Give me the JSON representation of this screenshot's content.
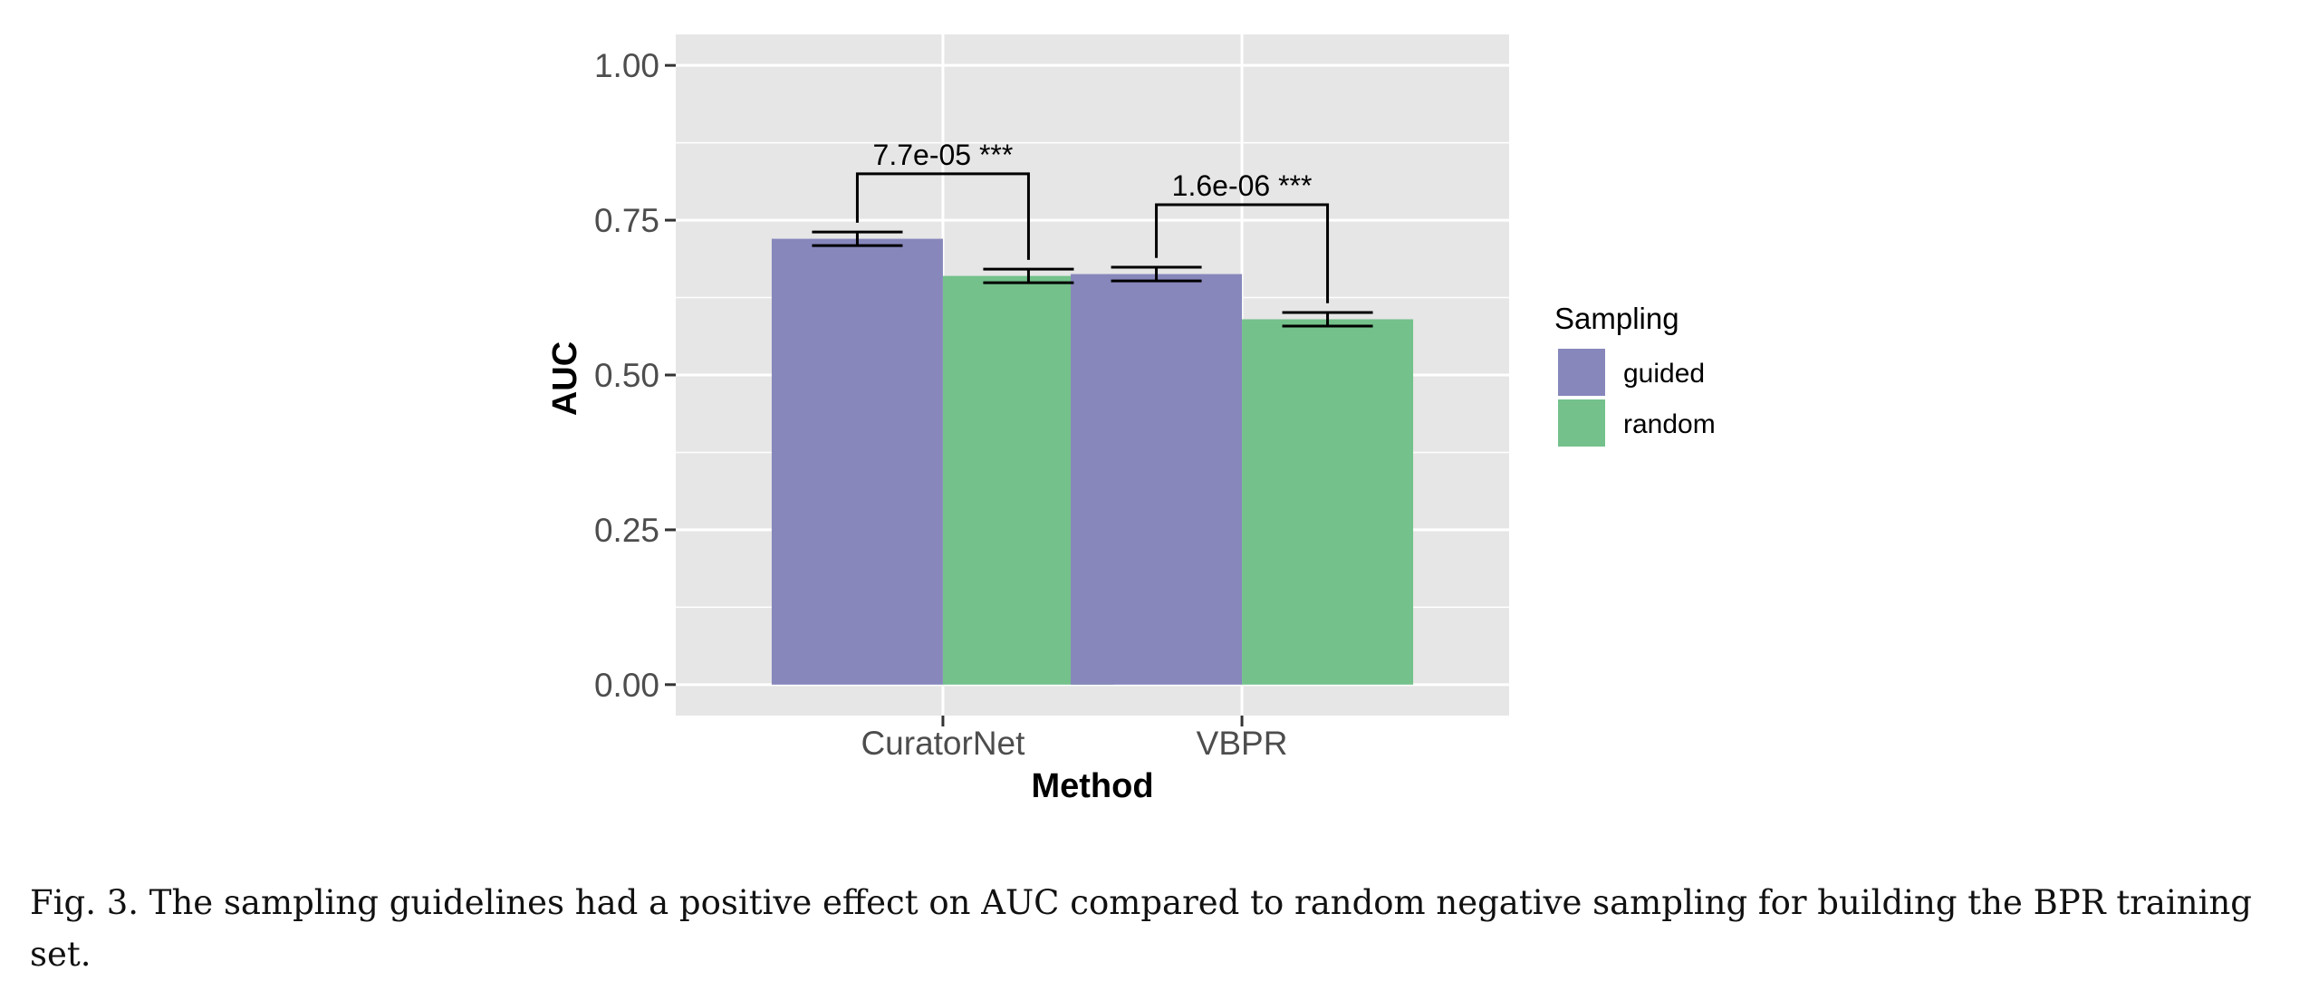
{
  "chart_data": {
    "type": "bar",
    "categories": [
      "CuratorNet",
      "VBPR"
    ],
    "series": [
      {
        "name": "guided",
        "values": [
          0.72,
          0.663
        ],
        "error": [
          0.011,
          0.011
        ],
        "color": "#8787bc"
      },
      {
        "name": "random",
        "values": [
          0.66,
          0.59
        ],
        "error": [
          0.011,
          0.011
        ],
        "color": "#74c18b"
      }
    ],
    "xlabel": "Method",
    "ylabel": "AUC",
    "ylim": [
      -0.05,
      1.05
    ],
    "yticks": [
      "0.00",
      "0.25",
      "0.50",
      "0.75",
      "1.00"
    ],
    "ytick_values": [
      0,
      0.25,
      0.5,
      0.75,
      1.0
    ],
    "legend": {
      "title": "Sampling",
      "position": "right"
    },
    "annotations": [
      {
        "category": "CuratorNet",
        "text": "7.7e-05 ***",
        "bracket_y": 0.825
      },
      {
        "category": "VBPR",
        "text": "1.6e-06 ***",
        "bracket_y": 0.775
      }
    ],
    "grid": true,
    "panel_background": "#e6e6e6",
    "grid_color": "#ffffff"
  },
  "caption": "Fig. 3.  The sampling guidelines had a positive effect on AUC compared to random negative sampling for building the BPR training set."
}
